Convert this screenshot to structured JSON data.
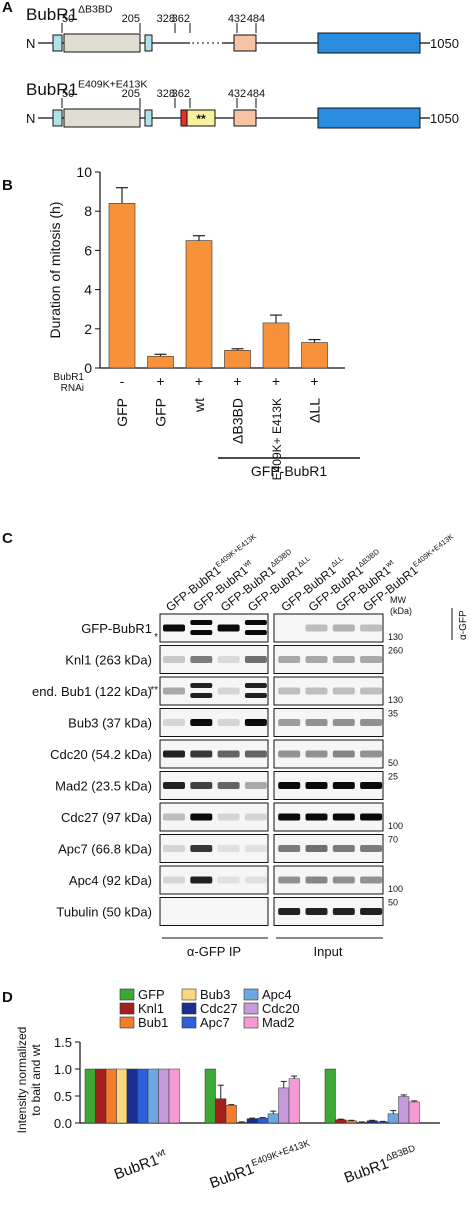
{
  "domain_map": {
    "panel": "A",
    "constructs": [
      {
        "name": "BubR1",
        "sup": "ΔB3BD",
        "n_term": "N",
        "positions": [
          50,
          205,
          328,
          362,
          432,
          484
        ],
        "end": 1050
      },
      {
        "name": "BubR1",
        "sup": "E409K+E413K",
        "n_term": "N",
        "positions": [
          50,
          205,
          328,
          362,
          432,
          484
        ],
        "end": 1050,
        "mutation_mark": "**"
      }
    ]
  },
  "chart_data": [
    {
      "type": "bar",
      "panel": "B",
      "ylabel": "Duration of mitosis (h)",
      "categories": [
        "GFP",
        "GFP",
        "wt",
        "ΔB3BD",
        "E409K+ E413K",
        "ΔLL"
      ],
      "values": [
        8.4,
        0.6,
        6.5,
        0.9,
        2.3,
        1.3
      ],
      "errors": [
        0.8,
        0.1,
        0.25,
        0.08,
        0.4,
        0.15
      ],
      "rnai_label": [
        "BubR1",
        "RNAi"
      ],
      "rnai": [
        "-",
        "+",
        "+",
        "+",
        "+",
        "+"
      ],
      "group_label": "GFP-BubR1",
      "color": "#f7913a",
      "ylim": [
        0,
        10
      ],
      "yticks": [
        0,
        2,
        4,
        6,
        8,
        10
      ]
    },
    {
      "type": "grouped_bar",
      "panel": "D",
      "ylabel": [
        "Intensity normalized",
        "to bait and wt"
      ],
      "categories": [
        {
          "base": "BubR1",
          "sup": "wt"
        },
        {
          "base": "BubR1",
          "sup": "E409K+E413K"
        },
        {
          "base": "BubR1",
          "sup": "ΔB3BD"
        }
      ],
      "series": [
        {
          "name": "GFP",
          "color": "#3aa935",
          "values": [
            1,
            1,
            1
          ],
          "errors": [
            0,
            0,
            0
          ]
        },
        {
          "name": "Knl1",
          "color": "#a3201d",
          "values": [
            1,
            0.45,
            0.06
          ],
          "errors": [
            0,
            0.25,
            0.01
          ]
        },
        {
          "name": "Bub1",
          "color": "#f07e2c",
          "values": [
            1,
            0.33,
            0.04
          ],
          "errors": [
            0,
            0.01,
            0.01
          ]
        },
        {
          "name": "Bub3",
          "color": "#fcd77f",
          "values": [
            1,
            0.01,
            0.01
          ],
          "errors": [
            0,
            0.01,
            0.01
          ]
        },
        {
          "name": "Cdc27",
          "color": "#1b2f8f",
          "values": [
            1,
            0.08,
            0.04
          ],
          "errors": [
            0,
            0.01,
            0.01
          ]
        },
        {
          "name": "Apc7",
          "color": "#2e5fd8",
          "values": [
            1,
            0.09,
            0.02
          ],
          "errors": [
            0,
            0.01,
            0.01
          ]
        },
        {
          "name": "Apc4",
          "color": "#6fa8e0",
          "values": [
            1,
            0.17,
            0.17
          ],
          "errors": [
            0,
            0.05,
            0.06
          ]
        },
        {
          "name": "Cdc20",
          "color": "#c59bdb",
          "values": [
            1,
            0.65,
            0.49
          ],
          "errors": [
            0,
            0.12,
            0.03
          ]
        },
        {
          "name": "Mad2",
          "color": "#f49ad4",
          "values": [
            1,
            0.82,
            0.39
          ],
          "errors": [
            0,
            0.05,
            0.02
          ]
        }
      ],
      "ylim": [
        0,
        1.5
      ],
      "yticks": [
        {
          "value": 0,
          "label": "0.0"
        },
        {
          "value": 0.5,
          "label": "0.5"
        },
        {
          "value": 1,
          "label": "1.0"
        },
        {
          "value": 1.5,
          "label": "1.5"
        }
      ]
    }
  ],
  "blot": {
    "panel": "C",
    "lanes": [
      {
        "base": "GFP-BubR1",
        "sup": "E409K+E413K"
      },
      {
        "base": "GFP-BubR1",
        "sup": "wt"
      },
      {
        "base": "GFP-BubR1",
        "sup": "ΔB3BD"
      },
      {
        "base": "GFP-BubR1",
        "sup": "ΔLL"
      },
      {
        "base": "GFP-BubR1",
        "sup": "ΔLL"
      },
      {
        "base": "GFP-BubR1",
        "sup": "ΔB3BD"
      },
      {
        "base": "GFP-BubR1",
        "sup": "wt"
      },
      {
        "base": "GFP-BubR1",
        "sup": "E409K+E413K"
      }
    ],
    "rows": [
      "GFP-BubR1",
      "Knl1 (263 kDa)",
      "end. Bub1 (122 kDa)",
      "Bub3 (37 kDa)",
      "Cdc20 (54.2 kDa)",
      "Mad2 (23.5 kDa)",
      "Cdc27 (97 kDa)",
      "Apc7 (66.8 kDa)",
      "Apc4 (92 kDa)",
      "Tubulin (50 kDa)"
    ],
    "row_marks": {
      "0": "*",
      "2": "**"
    },
    "mw_header": [
      "MW",
      "(kDa)"
    ],
    "antibody": "α-GFP",
    "mw": [
      130,
      260,
      130,
      35,
      50,
      25,
      100,
      70,
      100,
      50
    ],
    "groups": [
      "α-GFP IP",
      "Input"
    ]
  }
}
